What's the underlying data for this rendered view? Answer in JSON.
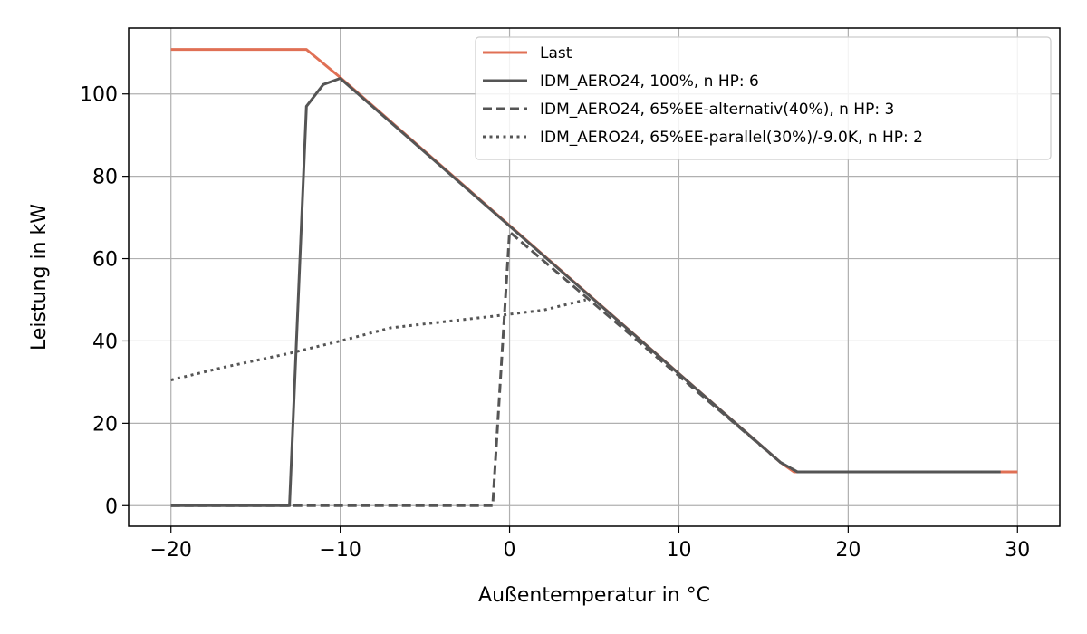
{
  "chart_data": {
    "type": "line",
    "title": "",
    "xlabel": "Außentemperatur in °C",
    "ylabel": "Leistung in kW",
    "xlim": [
      -22.5,
      32.5
    ],
    "ylim": [
      -5,
      116
    ],
    "xticks": [
      -20,
      -10,
      0,
      10,
      20,
      30
    ],
    "yticks": [
      0,
      20,
      40,
      60,
      80,
      100
    ],
    "xtick_labels": [
      "−20",
      "−10",
      "0",
      "10",
      "20",
      "30"
    ],
    "ytick_labels": [
      "0",
      "20",
      "40",
      "60",
      "80",
      "100"
    ],
    "grid": true,
    "legend_position": "top-right",
    "series": [
      {
        "name": "Last",
        "color": "#e07055",
        "style": "solid",
        "x": [
          -20,
          -12,
          -10,
          16,
          16.8,
          30
        ],
        "y": [
          110.8,
          110.8,
          104,
          10.5,
          8.2,
          8.2
        ]
      },
      {
        "name": "IDM_AERO24, 100%, n HP: 6",
        "color": "#555555",
        "style": "solid",
        "x": [
          -20,
          -13,
          -12,
          -11,
          -10,
          16,
          17,
          29
        ],
        "y": [
          0,
          0,
          97,
          102.3,
          103.8,
          10.5,
          8.2,
          8.2
        ]
      },
      {
        "name": "IDM_AERO24, 65%EE-alternativ(40%), n HP: 3",
        "color": "#555555",
        "style": "dashed",
        "x": [
          -20,
          -1,
          0,
          16,
          17,
          29
        ],
        "y": [
          0,
          0,
          66.5,
          10.5,
          8.2,
          8.2
        ]
      },
      {
        "name": "IDM_AERO24, 65%EE-parallel(30%)/-9.0K, n HP: 2",
        "color": "#555555",
        "style": "dotted",
        "x": [
          -20,
          -17,
          -13,
          -10,
          -7,
          -4,
          -1,
          2,
          4.5
        ],
        "y": [
          30.5,
          33.5,
          37,
          40,
          43.2,
          44.6,
          46,
          47.5,
          50
        ]
      }
    ]
  }
}
